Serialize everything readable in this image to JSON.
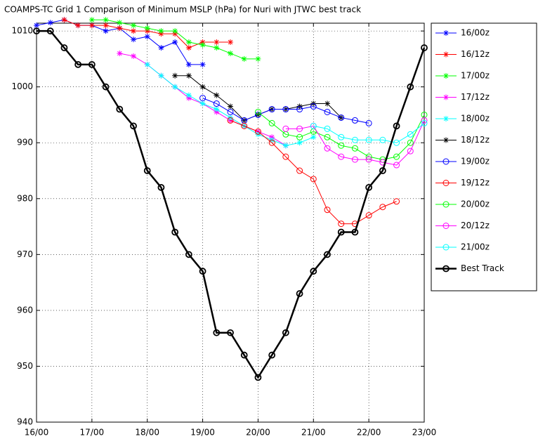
{
  "chart_data": {
    "type": "line",
    "title": "COAMPS-TC Grid 1 Comparison of Minimum MSLP (hPa) for Nuri with JTWC best track",
    "xlim": [
      16,
      23
    ],
    "ylim": [
      940,
      1011.4
    ],
    "xticks": [
      {
        "value": 16,
        "label": "16/00"
      },
      {
        "value": 17,
        "label": "17/00"
      },
      {
        "value": 18,
        "label": "18/00"
      },
      {
        "value": 19,
        "label": "19/00"
      },
      {
        "value": 20,
        "label": "20/00"
      },
      {
        "value": 21,
        "label": "21/00"
      },
      {
        "value": 22,
        "label": "22/00"
      },
      {
        "value": 23,
        "label": "23/00"
      }
    ],
    "yticks": [
      940,
      950,
      960,
      970,
      980,
      990,
      1000,
      1010
    ],
    "grid": true,
    "legend": "outside-right",
    "series": [
      {
        "name": "16/00z",
        "color": "#0000ff",
        "marker": "*",
        "x": [
          16,
          16.25,
          16.5,
          16.75,
          17,
          17.25,
          17.5,
          17.75,
          18,
          18.25,
          18.5,
          18.75,
          19
        ],
        "values": [
          1011,
          1011.5,
          1012,
          1011,
          1011,
          1010,
          1010.5,
          1008.5,
          1009,
          1007,
          1008,
          1004,
          1004
        ]
      },
      {
        "name": "16/12z",
        "color": "#ff0000",
        "marker": "*",
        "x": [
          16.5,
          16.75,
          17,
          17.25,
          17.5,
          17.75,
          18,
          18.25,
          18.5,
          18.75,
          19,
          19.25,
          19.5
        ],
        "values": [
          1012,
          1011,
          1011,
          1011,
          1010.5,
          1010,
          1010,
          1009.5,
          1009.5,
          1007,
          1008,
          1008,
          1008
        ]
      },
      {
        "name": "17/00z",
        "color": "#00ff00",
        "marker": "*",
        "x": [
          17,
          17.25,
          17.5,
          17.75,
          18,
          18.25,
          18.5,
          18.75,
          19,
          19.25,
          19.5,
          19.75,
          20
        ],
        "values": [
          1012,
          1012,
          1011.5,
          1011,
          1010.5,
          1010,
          1010,
          1008,
          1007.5,
          1007,
          1006,
          1005,
          1005
        ]
      },
      {
        "name": "17/12z",
        "color": "#ff00ff",
        "marker": "*",
        "x": [
          17.5,
          17.75,
          18,
          18.25,
          18.5,
          18.75,
          19,
          19.25,
          19.5,
          19.75,
          20,
          20.25,
          20.5
        ],
        "values": [
          1006,
          1005.5,
          1004,
          1002,
          1000,
          998,
          997,
          995.5,
          994,
          993,
          992,
          991,
          989.5
        ]
      },
      {
        "name": "18/00z",
        "color": "#00ffff",
        "marker": "*",
        "x": [
          18,
          18.25,
          18.5,
          18.75,
          19,
          19.25,
          19.5,
          19.75,
          20,
          20.25,
          20.5,
          20.75,
          21
        ],
        "values": [
          1004,
          1002,
          1000,
          998.5,
          997,
          996,
          994.5,
          993,
          991.5,
          990.5,
          989.5,
          990,
          991
        ]
      },
      {
        "name": "18/12z",
        "color": "#000000",
        "marker": "*",
        "x": [
          18.5,
          18.75,
          19,
          19.25,
          19.5,
          19.75,
          20,
          20.25,
          20.5,
          20.75,
          21,
          21.25,
          21.5
        ],
        "values": [
          1002,
          1002,
          1000,
          998.5,
          996.5,
          994,
          995,
          996,
          996,
          996.5,
          997,
          997,
          994.5
        ]
      },
      {
        "name": "19/00z",
        "color": "#0000ff",
        "marker": "o",
        "x": [
          19,
          19.25,
          19.5,
          19.75,
          20,
          20.25,
          20.5,
          20.75,
          21,
          21.25,
          21.5,
          21.75,
          22
        ],
        "values": [
          998,
          997,
          995.5,
          994,
          995,
          996,
          996,
          996,
          996.5,
          995.5,
          994.5,
          994,
          993.5
        ]
      },
      {
        "name": "19/12z",
        "color": "#ff0000",
        "marker": "o",
        "x": [
          19.5,
          19.75,
          20,
          20.25,
          20.5,
          20.75,
          21,
          21.25,
          21.5,
          21.75,
          22,
          22.25,
          22.5
        ],
        "values": [
          994,
          993,
          992,
          990,
          987.5,
          985,
          983.5,
          978,
          975.5,
          975.5,
          977,
          978.5,
          979.5
        ]
      },
      {
        "name": "20/00z",
        "color": "#00ff00",
        "marker": "o",
        "x": [
          20,
          20.25,
          20.5,
          20.75,
          21,
          21.25,
          21.5,
          21.75,
          22,
          22.25,
          22.5,
          22.75,
          23
        ],
        "values": [
          995.5,
          993.5,
          991.5,
          991,
          992,
          991,
          989.5,
          989,
          987.5,
          987,
          987.5,
          990,
          995
        ]
      },
      {
        "name": "20/12z",
        "color": "#ff00ff",
        "marker": "o",
        "x": [
          20.5,
          20.75,
          21,
          21.25,
          21.5,
          21.75,
          22,
          22.25,
          22.5,
          22.75,
          23
        ],
        "values": [
          992.5,
          992.5,
          993,
          989,
          987.5,
          987,
          987,
          986.5,
          986,
          988.5,
          994
        ]
      },
      {
        "name": "21/00z",
        "color": "#00ffff",
        "marker": "o",
        "x": [
          21,
          21.25,
          21.5,
          21.75,
          22,
          22.25,
          22.5,
          22.75,
          23
        ],
        "values": [
          993,
          992.5,
          991,
          990.5,
          990.5,
          990.5,
          990,
          991.5,
          993.5
        ]
      },
      {
        "name": "Best Track",
        "color": "#000000",
        "marker": "o",
        "width": 2.5,
        "x": [
          16,
          16.25,
          16.5,
          16.75,
          17,
          17.25,
          17.5,
          17.75,
          18,
          18.25,
          18.5,
          18.75,
          19,
          19.25,
          19.5,
          19.75,
          20,
          20.25,
          20.5,
          20.75,
          21,
          21.25,
          21.5,
          21.75,
          22,
          22.25,
          22.5,
          22.75,
          23
        ],
        "values": [
          1010,
          1010,
          1007,
          1004,
          1004,
          1000,
          996,
          993,
          985,
          982,
          974,
          970,
          967,
          956,
          956,
          952,
          948,
          952,
          956,
          963,
          967,
          970,
          974,
          974,
          982,
          985,
          993,
          1000,
          1007
        ]
      }
    ]
  }
}
